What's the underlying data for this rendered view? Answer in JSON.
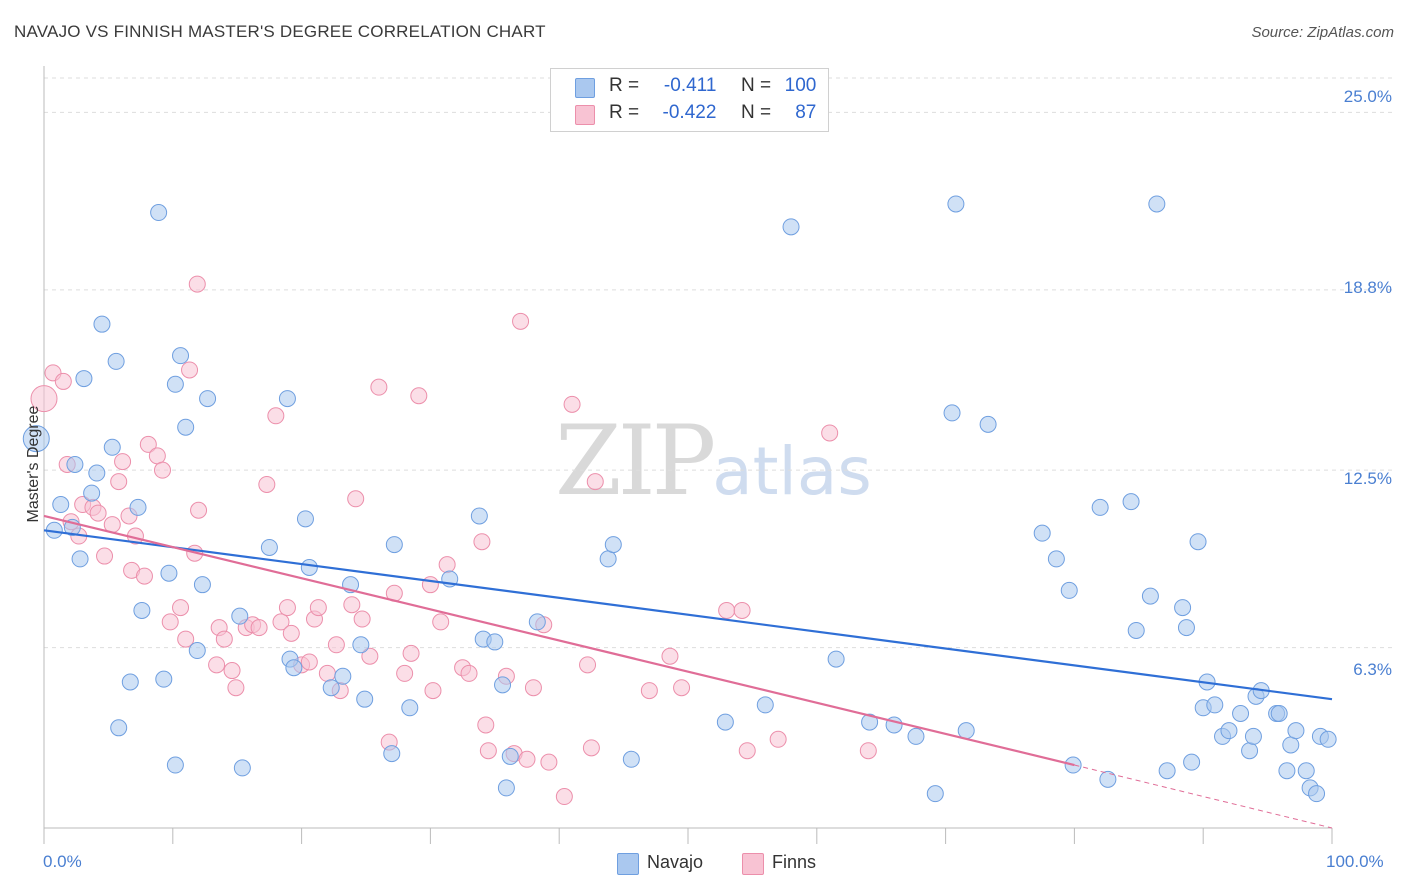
{
  "title": "NAVAJO VS FINNISH MASTER'S DEGREE CORRELATION CHART",
  "source": "Source: ZipAtlas.com",
  "watermark": {
    "zip": "ZIP",
    "atlas": "atlas"
  },
  "legend": {
    "rows": [
      {
        "r_label": "R =",
        "r_value": "-0.411",
        "n_label": "N =",
        "n_value": "100",
        "color": "#aac8ef"
      },
      {
        "r_label": "R =",
        "r_value": "-0.422",
        "n_label": "N =",
        "n_value": "87",
        "color": "#f5b8cb"
      }
    ]
  },
  "bottom_legend": [
    {
      "label": "Navajo",
      "color": "#aac8ef"
    },
    {
      "label": "Finns",
      "color": "#f5b8cb"
    }
  ],
  "colors": {
    "navajo_fill": "#aac8ef",
    "navajo_stroke": "#6f9fe0",
    "navajo_line": "#2f6fd6",
    "finns_fill": "#f8c3d3",
    "finns_stroke": "#ec8fab",
    "finns_line": "#e06d97",
    "grid": "#dddddd",
    "tick_text": "#4a7fd1"
  },
  "chart_data": {
    "type": "scatter",
    "title": "NAVAJO VS FINNISH MASTER'S DEGREE CORRELATION CHART",
    "xlabel": "",
    "ylabel": "Master's Degree",
    "xlim": [
      0,
      100
    ],
    "ylim": [
      0,
      26.2
    ],
    "x_tick_labels": [
      "0.0%",
      "100.0%"
    ],
    "y_ticks": [
      6.3,
      12.5,
      18.8,
      25.0
    ],
    "y_tick_labels": [
      "6.3%",
      "12.5%",
      "18.8%",
      "25.0%"
    ],
    "grid": "horizontal dashed",
    "legend_position": "top-center",
    "series": [
      {
        "name": "Navajo",
        "r": -0.411,
        "n": 100,
        "trend": {
          "x": [
            0,
            100
          ],
          "y": [
            10.4,
            4.5
          ]
        },
        "points": [
          [
            -0.6,
            13.6
          ],
          [
            0.8,
            10.4
          ],
          [
            1.3,
            11.3
          ],
          [
            2.2,
            10.5
          ],
          [
            2.4,
            12.7
          ],
          [
            2.8,
            9.4
          ],
          [
            3.1,
            15.7
          ],
          [
            3.7,
            11.7
          ],
          [
            4.1,
            12.4
          ],
          [
            4.5,
            17.6
          ],
          [
            5.3,
            13.3
          ],
          [
            5.6,
            16.3
          ],
          [
            5.8,
            3.5
          ],
          [
            6.7,
            5.1
          ],
          [
            7.3,
            11.2
          ],
          [
            7.6,
            7.6
          ],
          [
            8.9,
            21.5
          ],
          [
            9.3,
            5.2
          ],
          [
            9.7,
            8.9
          ],
          [
            10.2,
            2.2
          ],
          [
            10.2,
            15.5
          ],
          [
            10.6,
            16.5
          ],
          [
            11.0,
            14.0
          ],
          [
            11.9,
            6.2
          ],
          [
            12.3,
            8.5
          ],
          [
            12.7,
            15.0
          ],
          [
            15.4,
            2.1
          ],
          [
            15.2,
            7.4
          ],
          [
            17.5,
            9.8
          ],
          [
            18.9,
            15.0
          ],
          [
            19.1,
            5.9
          ],
          [
            19.4,
            5.6
          ],
          [
            20.3,
            10.8
          ],
          [
            20.6,
            9.1
          ],
          [
            22.3,
            4.9
          ],
          [
            23.2,
            5.3
          ],
          [
            23.8,
            8.5
          ],
          [
            24.6,
            6.4
          ],
          [
            24.9,
            4.5
          ],
          [
            27.0,
            2.6
          ],
          [
            27.2,
            9.9
          ],
          [
            28.4,
            4.2
          ],
          [
            31.5,
            8.7
          ],
          [
            33.8,
            10.9
          ],
          [
            34.1,
            6.6
          ],
          [
            35.0,
            6.5
          ],
          [
            35.6,
            5.0
          ],
          [
            35.9,
            1.4
          ],
          [
            36.2,
            2.5
          ],
          [
            38.3,
            7.2
          ],
          [
            43.8,
            9.4
          ],
          [
            44.2,
            9.9
          ],
          [
            45.6,
            2.4
          ],
          [
            52.9,
            3.7
          ],
          [
            56.0,
            4.3
          ],
          [
            58.0,
            21.0
          ],
          [
            61.5,
            5.9
          ],
          [
            64.1,
            3.7
          ],
          [
            66.0,
            3.6
          ],
          [
            67.7,
            3.2
          ],
          [
            69.2,
            1.2
          ],
          [
            70.5,
            14.5
          ],
          [
            70.8,
            21.8
          ],
          [
            71.6,
            3.4
          ],
          [
            73.3,
            14.1
          ],
          [
            77.5,
            10.3
          ],
          [
            78.6,
            9.4
          ],
          [
            79.6,
            8.3
          ],
          [
            79.9,
            2.2
          ],
          [
            82.0,
            11.2
          ],
          [
            82.6,
            1.7
          ],
          [
            84.4,
            11.4
          ],
          [
            84.8,
            6.9
          ],
          [
            85.9,
            8.1
          ],
          [
            86.4,
            21.8
          ],
          [
            87.2,
            2.0
          ],
          [
            88.4,
            7.7
          ],
          [
            88.7,
            7.0
          ],
          [
            89.1,
            2.3
          ],
          [
            89.6,
            10.0
          ],
          [
            90.0,
            4.2
          ],
          [
            90.3,
            5.1
          ],
          [
            90.9,
            4.3
          ],
          [
            91.5,
            3.2
          ],
          [
            92.0,
            3.4
          ],
          [
            92.9,
            4.0
          ],
          [
            93.6,
            2.7
          ],
          [
            93.9,
            3.2
          ],
          [
            94.1,
            4.6
          ],
          [
            94.5,
            4.8
          ],
          [
            95.7,
            4.0
          ],
          [
            95.9,
            4.0
          ],
          [
            96.5,
            2.0
          ],
          [
            96.8,
            2.9
          ],
          [
            97.2,
            3.4
          ],
          [
            98.0,
            2.0
          ],
          [
            98.3,
            1.4
          ],
          [
            98.8,
            1.2
          ],
          [
            99.1,
            3.2
          ],
          [
            99.7,
            3.1
          ]
        ]
      },
      {
        "name": "Finns",
        "r": -0.422,
        "n": 87,
        "trend": {
          "x": [
            0,
            80
          ],
          "y": [
            10.9,
            2.2
          ]
        },
        "trend_extension": {
          "x": [
            80,
            100
          ],
          "y": [
            2.2,
            0.0
          ]
        },
        "points": [
          [
            0.0,
            15.0
          ],
          [
            0.7,
            15.9
          ],
          [
            1.5,
            15.6
          ],
          [
            1.8,
            12.7
          ],
          [
            2.1,
            10.7
          ],
          [
            2.7,
            10.2
          ],
          [
            3.0,
            11.3
          ],
          [
            3.8,
            11.2
          ],
          [
            4.2,
            11.0
          ],
          [
            4.7,
            9.5
          ],
          [
            5.3,
            10.6
          ],
          [
            5.8,
            12.1
          ],
          [
            6.1,
            12.8
          ],
          [
            6.6,
            10.9
          ],
          [
            6.8,
            9.0
          ],
          [
            7.1,
            10.2
          ],
          [
            7.8,
            8.8
          ],
          [
            8.1,
            13.4
          ],
          [
            8.8,
            13.0
          ],
          [
            9.2,
            12.5
          ],
          [
            9.8,
            7.2
          ],
          [
            10.6,
            7.7
          ],
          [
            11.0,
            6.6
          ],
          [
            11.3,
            16.0
          ],
          [
            11.7,
            9.6
          ],
          [
            11.9,
            19.0
          ],
          [
            12.0,
            11.1
          ],
          [
            13.4,
            5.7
          ],
          [
            13.6,
            7.0
          ],
          [
            14.0,
            6.6
          ],
          [
            14.6,
            5.5
          ],
          [
            14.9,
            4.9
          ],
          [
            15.7,
            7.0
          ],
          [
            16.2,
            7.1
          ],
          [
            16.7,
            7.0
          ],
          [
            17.3,
            12.0
          ],
          [
            18.0,
            14.4
          ],
          [
            18.4,
            7.2
          ],
          [
            18.9,
            7.7
          ],
          [
            19.2,
            6.8
          ],
          [
            20.0,
            5.7
          ],
          [
            20.6,
            5.8
          ],
          [
            21.0,
            7.3
          ],
          [
            21.3,
            7.7
          ],
          [
            22.0,
            5.4
          ],
          [
            22.7,
            6.4
          ],
          [
            23.0,
            4.8
          ],
          [
            23.9,
            7.8
          ],
          [
            24.2,
            11.5
          ],
          [
            24.7,
            7.3
          ],
          [
            25.3,
            6.0
          ],
          [
            26.0,
            15.4
          ],
          [
            26.8,
            3.0
          ],
          [
            27.2,
            8.2
          ],
          [
            28.0,
            5.4
          ],
          [
            28.5,
            6.1
          ],
          [
            29.1,
            15.1
          ],
          [
            30.0,
            8.5
          ],
          [
            30.2,
            4.8
          ],
          [
            30.8,
            7.2
          ],
          [
            31.3,
            9.2
          ],
          [
            32.5,
            5.6
          ],
          [
            33.0,
            5.4
          ],
          [
            34.0,
            10.0
          ],
          [
            34.3,
            3.6
          ],
          [
            34.5,
            2.7
          ],
          [
            35.9,
            5.3
          ],
          [
            36.5,
            2.6
          ],
          [
            37.0,
            17.7
          ],
          [
            37.5,
            2.4
          ],
          [
            38.0,
            4.9
          ],
          [
            38.8,
            7.1
          ],
          [
            39.2,
            2.3
          ],
          [
            40.4,
            1.1
          ],
          [
            41.0,
            14.8
          ],
          [
            42.2,
            5.7
          ],
          [
            42.5,
            2.8
          ],
          [
            42.8,
            12.1
          ],
          [
            47.0,
            4.8
          ],
          [
            48.6,
            6.0
          ],
          [
            49.5,
            4.9
          ],
          [
            53.0,
            7.6
          ],
          [
            54.2,
            7.6
          ],
          [
            54.6,
            2.7
          ],
          [
            57.0,
            3.1
          ],
          [
            61.0,
            13.8
          ],
          [
            64.0,
            2.7
          ]
        ]
      }
    ]
  }
}
